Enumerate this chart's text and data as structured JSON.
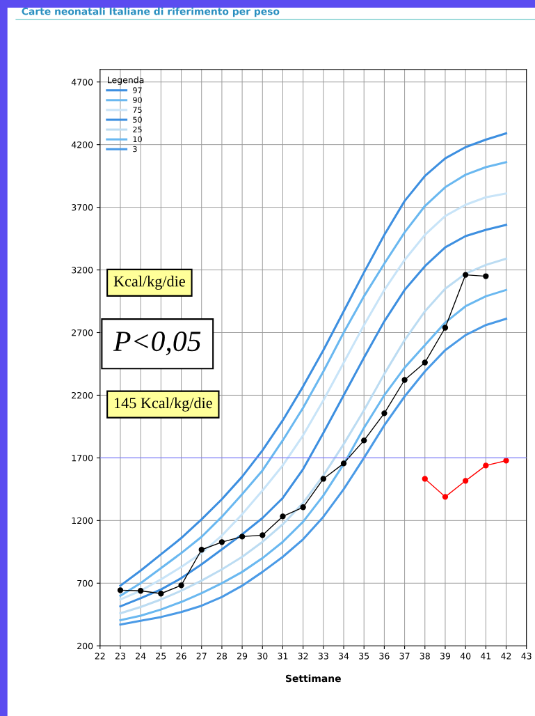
{
  "chart_data": {
    "type": "line",
    "title": "Carte neonatali Italiane di riferimento per peso",
    "xlabel": "Settimane",
    "legend_title": "Legenda",
    "legend": "top left",
    "grid": true,
    "marker": "none",
    "line_style": "solid",
    "x": [
      23,
      24,
      25,
      26,
      27,
      28,
      29,
      30,
      31,
      32,
      33,
      34,
      35,
      36,
      37,
      38,
      39,
      40,
      41,
      42
    ],
    "xlim": [
      22,
      43
    ],
    "xticks": [
      22,
      23,
      24,
      25,
      26,
      27,
      28,
      29,
      30,
      31,
      32,
      33,
      34,
      35,
      36,
      37,
      38,
      39,
      40,
      41,
      42,
      43
    ],
    "ylim": [
      200,
      4800
    ],
    "yticks": [
      200,
      700,
      1200,
      1700,
      2200,
      2700,
      3200,
      3700,
      4200,
      4700
    ],
    "series": [
      {
        "name": "97",
        "color": "#3d8fe0",
        "values": [
          680,
          800,
          930,
          1060,
          1210,
          1370,
          1550,
          1760,
          2000,
          2270,
          2560,
          2870,
          3180,
          3480,
          3750,
          3950,
          4090,
          4180,
          4240,
          4290
        ]
      },
      {
        "name": "90",
        "color": "#6ab8f0",
        "values": [
          600,
          700,
          820,
          940,
          1070,
          1230,
          1410,
          1600,
          1840,
          2100,
          2390,
          2700,
          2990,
          3250,
          3500,
          3710,
          3860,
          3960,
          4020,
          4060
        ]
      },
      {
        "name": "75",
        "color": "#c8e4f8",
        "values": [
          570,
          640,
          730,
          830,
          940,
          1080,
          1250,
          1440,
          1640,
          1880,
          2160,
          2460,
          2760,
          3040,
          3280,
          3480,
          3630,
          3720,
          3780,
          3810
        ]
      },
      {
        "name": "50",
        "color": "#3d8fe0",
        "values": [
          515,
          580,
          650,
          740,
          850,
          970,
          1090,
          1220,
          1380,
          1610,
          1900,
          2200,
          2500,
          2790,
          3040,
          3230,
          3380,
          3470,
          3520,
          3560
        ]
      },
      {
        "name": "25",
        "color": "#bcdcf2",
        "values": [
          460,
          510,
          570,
          640,
          720,
          810,
          910,
          1030,
          1170,
          1340,
          1560,
          1810,
          2080,
          2370,
          2640,
          2870,
          3050,
          3170,
          3240,
          3290
        ]
      },
      {
        "name": "10",
        "color": "#6ab8f0",
        "values": [
          405,
          440,
          490,
          550,
          620,
          700,
          790,
          900,
          1030,
          1190,
          1400,
          1650,
          1940,
          2200,
          2420,
          2600,
          2780,
          2910,
          2990,
          3040
        ]
      },
      {
        "name": "3",
        "color": "#4a9ae6",
        "values": [
          370,
          400,
          430,
          470,
          520,
          590,
          680,
          790,
          910,
          1050,
          1230,
          1450,
          1700,
          1960,
          2190,
          2390,
          2560,
          2680,
          2760,
          2810
        ]
      },
      {
        "color": "#000000",
        "marker": "circle",
        "x": [
          23,
          24,
          25,
          26,
          27,
          28,
          29,
          30,
          31,
          32,
          33,
          34,
          35,
          36,
          37,
          38,
          39,
          40,
          41
        ],
        "values": [
          644,
          639,
          617,
          683,
          967,
          1028,
          1072,
          1083,
          1233,
          1306,
          1533,
          1656,
          1839,
          2056,
          2322,
          2461,
          2739,
          3161,
          3150
        ]
      },
      {
        "color": "#ff0000",
        "marker": "circle",
        "x": [
          38,
          39,
          40,
          41,
          42
        ],
        "values": [
          1533,
          1389,
          1517,
          1639,
          1678
        ]
      }
    ],
    "ref_lines": [
      {
        "axis": "y",
        "value": 1700,
        "color": "#8080ff"
      }
    ],
    "annotations": [
      "Kcal/kg/die",
      "P<0,05",
      "145 Kcal/kg/die"
    ]
  }
}
